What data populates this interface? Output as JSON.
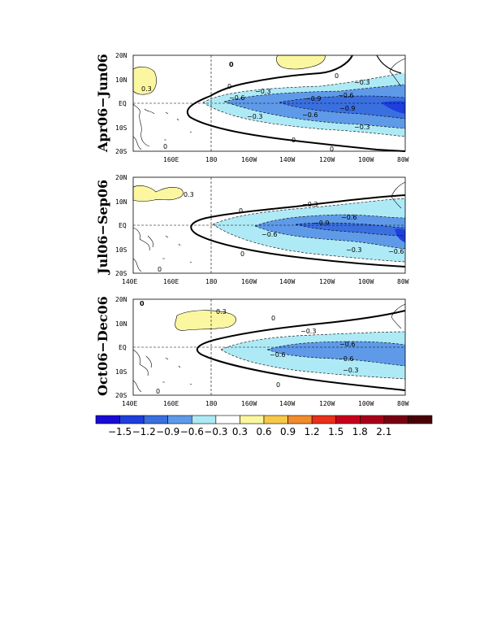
{
  "chart_data": {
    "type": "heatmap",
    "colorbar": {
      "colors": [
        "#1a0ad6",
        "#1e3fdc",
        "#3a6fe0",
        "#5f9ae8",
        "#aeeaf6",
        "#ffffff",
        "#fbf7a0",
        "#f6c84a",
        "#f08c2c",
        "#e8301c",
        "#c8001c",
        "#a8001a",
        "#780012",
        "#4a0008"
      ],
      "labels": [
        "−1.5",
        "−1.2",
        "−0.9",
        "−0.6",
        "−0.3",
        "0.3",
        "0.6",
        "0.9",
        "1.2",
        "1.5",
        "1.8",
        "2.1"
      ]
    },
    "x_ticks": [
      "140E",
      "160E",
      "180",
      "160W",
      "140W",
      "120W",
      "100W",
      "80W"
    ],
    "y_ticks": [
      "20N",
      "10N",
      "EQ",
      "10S",
      "20S"
    ],
    "panels": [
      {
        "title": "Apr06−Jun06",
        "contour_labels": [
          "0",
          "0.3",
          "−0.3",
          "−0.6",
          "−0.9",
          "−0.9",
          "−0.6",
          "−0.6",
          "−0.3",
          "−0.3",
          "0",
          "0",
          "0",
          "0",
          "0",
          "−0.3"
        ]
      },
      {
        "title": "Jul06−Sep06",
        "contour_labels": [
          "0.3",
          "0",
          "−0.3",
          "−0.9",
          "−0.6",
          "−0.6",
          "−0.3",
          "−0.6",
          "0",
          "0"
        ]
      },
      {
        "title": "Oct06−Dec06",
        "contour_labels": [
          "0",
          "0.3",
          "0",
          "−0.3",
          "−0.6",
          "−0.6",
          "−0.6",
          "−0.3",
          "0",
          "0"
        ]
      }
    ]
  }
}
